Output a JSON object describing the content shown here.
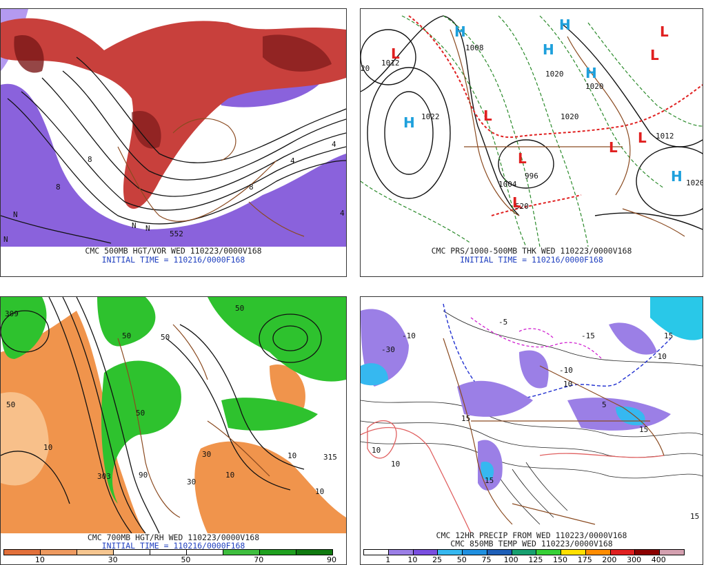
{
  "panels": [
    {
      "id": "tl",
      "caption_line1": "CMC 500MB HGT/VOR WED 110223/0000V168",
      "caption_line2": "INITIAL TIME = 110216/0000F168",
      "map_labels": [
        "552",
        "N",
        "N",
        "N",
        "8",
        "8",
        "4",
        "4",
        "4",
        "8",
        "N"
      ]
    },
    {
      "id": "tr",
      "caption_line1": "CMC PRS/1000-500MB THK WED 110223/0000V168",
      "caption_line2": "INITIAL TIME = 110216/0000F168",
      "map_labels": [
        "1012",
        "1022",
        "1020",
        "1008",
        "1020",
        "1020",
        "1012",
        "1020",
        "996",
        "1004",
        "520",
        "20"
      ],
      "highs_lows": [
        "L",
        "L",
        "L",
        "L",
        "L",
        "L",
        "L",
        "L",
        "H",
        "H",
        "H",
        "H",
        "H",
        "H"
      ]
    },
    {
      "id": "bl",
      "caption_line1": "CMC 700MB HGT/RH WED 110223/0000V168",
      "caption_line2": "INITIAL TIME = 110216/0000F168",
      "map_labels": [
        "10",
        "10",
        "10",
        "10",
        "303",
        "315",
        "50",
        "50",
        "50",
        "50",
        "30",
        "30",
        "90",
        "309",
        "50"
      ]
    },
    {
      "id": "br",
      "caption_line1": "CMC 12HR PRECIP FROM WED 110223/0000V168",
      "caption_line2": "CMC 850MB TEMP WED 110223/0000V168",
      "map_labels": [
        "-10",
        "-10",
        "-10",
        "10",
        "10",
        "10",
        "15",
        "15",
        "15",
        "15",
        "-30",
        "5",
        "-5",
        "15",
        "-15"
      ]
    }
  ],
  "legend_rh": {
    "ticks": [
      "10",
      "30",
      "50",
      "70",
      "90"
    ],
    "colors": [
      "#e2703b",
      "#ee9a60",
      "#f6c690",
      "#ffffff",
      "#ffffff",
      "#ffffff",
      "#3fbe3f",
      "#20a020",
      "#107a10"
    ]
  },
  "legend_precip": {
    "ticks": [
      "1",
      "10",
      "25",
      "50",
      "75",
      "100",
      "125",
      "150",
      "175",
      "200",
      "300",
      "400"
    ],
    "colors": [
      "#ffffff",
      "#9b7fe6",
      "#7a4fe0",
      "#36b8f0",
      "#2090e0",
      "#1e5fb8",
      "#18a070",
      "#36d036",
      "#ffe000",
      "#ff8c00",
      "#e02020",
      "#8b0000",
      "#d4a0b0"
    ]
  },
  "colors": {
    "purple": "#8a62dc",
    "purple_light": "#b49af0",
    "red": "#c8403c",
    "red_dark": "#7a1818",
    "brown": "#8a4a20",
    "green_dash": "#2a8a2a",
    "orange": "#f0944c",
    "orange_light": "#f8c08a",
    "green": "#2ec22e",
    "cyan": "#29c8e8",
    "high_blue": "#1ea0dc",
    "low_red": "#e02020"
  }
}
